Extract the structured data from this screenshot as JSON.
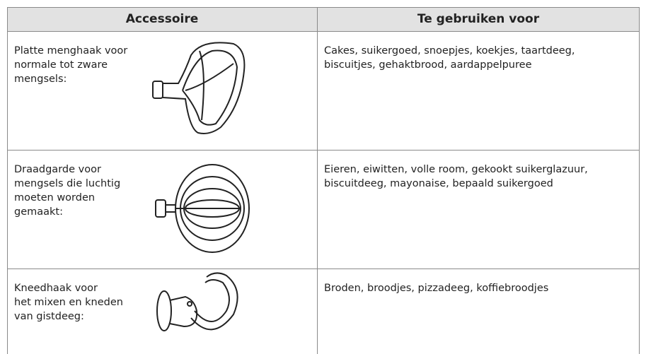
{
  "table": {
    "header": [
      "Accessoire",
      "Te gebruiken voor"
    ],
    "rows": [
      [
        [
          "Platte menghaak voor",
          "normale tot zware",
          "mengsels:"
        ],
        [
          "Cakes, suikergoed, snoepjes, koekjes, taartdeeg,",
          "biscuitjes, gehaktbrood, aardappelpuree"
        ]
      ],
      [
        [
          "Draadgarde voor",
          "mengsels die luchtig",
          "moeten worden",
          "gemaakt:"
        ],
        [
          "Eieren, eiwitten, volle room, gekookt suikerglazuur,",
          "biscuitdeeg, mayonaise, bepaald suikergoed"
        ]
      ],
      [
        [
          "Kneedhaak voor",
          "het mixen en kneden",
          "van gistdeeg:"
        ],
        [
          "Broden, broodjes, pizzadeeg, koffiebroodjes"
        ]
      ]
    ]
  }
}
